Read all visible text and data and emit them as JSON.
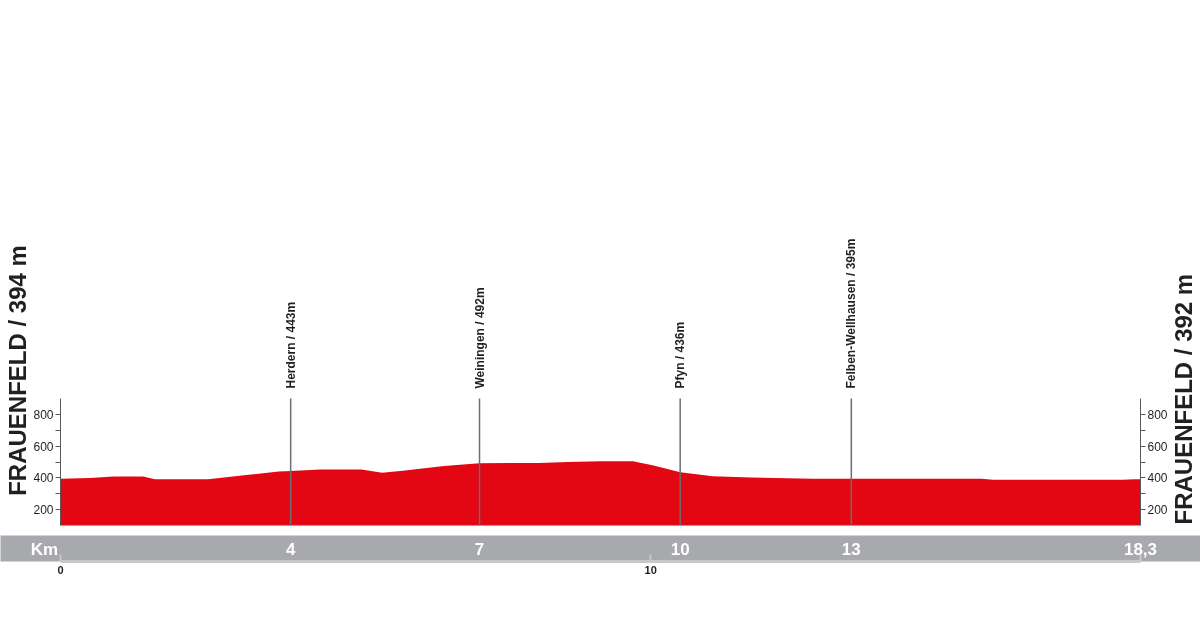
{
  "chart_data": {
    "type": "area",
    "ylabel": "FRAUENFELD / 394 m",
    "y2label": "FRAUENFELD / 392 m",
    "x2label": "Km",
    "x": [
      0,
      0.5,
      0.9,
      1.4,
      1.6,
      2.5,
      3.15,
      3.7,
      3.9,
      4.4,
      5.1,
      5.45,
      5.8,
      6.5,
      7.1,
      8.1,
      8.6,
      9.15,
      9.7,
      10.05,
      10.5,
      11.05,
      11.7,
      12.75,
      13.4,
      15.6,
      15.8,
      18.0,
      18.2,
      18.3
    ],
    "values": [
      394,
      400,
      408,
      408,
      392,
      392,
      418,
      440,
      443,
      452,
      452,
      433,
      445,
      475,
      492,
      494,
      500,
      505,
      505,
      478,
      436,
      410,
      402,
      395,
      395,
      395,
      388,
      388,
      392,
      392
    ],
    "color": "#e30613",
    "xlim": [
      0,
      18.3
    ],
    "xticks": [
      0,
      10,
      {
        "value": 18.3,
        "label": null
      }
    ],
    "x2lim": [
      0,
      18.3
    ],
    "x2ticks": [
      {
        "value": 3.9,
        "label": "4"
      },
      {
        "value": 7.1,
        "label": "7"
      },
      {
        "value": 10.5,
        "label": "10"
      },
      {
        "value": 13.4,
        "label": "13"
      },
      {
        "value": 18.3,
        "label": "18,3"
      }
    ],
    "ylim": [
      100,
      900
    ],
    "yticks": [
      200,
      {
        "value": 300,
        "label": null
      },
      400,
      {
        "value": 500,
        "label": null
      },
      600,
      {
        "value": 700,
        "label": null
      },
      800
    ],
    "y2lim": [
      100,
      900
    ],
    "y2ticks": [
      200,
      {
        "value": 300,
        "label": null
      },
      400,
      {
        "value": 500,
        "label": null
      },
      600,
      {
        "value": 700,
        "label": null
      },
      800
    ],
    "ref_lines": [
      {
        "axis": "x",
        "value": 3.9,
        "label": "Herdern / 443m",
        "color": "#6d6e71"
      },
      {
        "axis": "x",
        "value": 7.1,
        "label": "Weiningen / 492m",
        "color": "#6d6e71"
      },
      {
        "axis": "x",
        "value": 10.5,
        "label": "Pfyn / 436m",
        "color": "#6d6e71"
      },
      {
        "axis": "x",
        "value": 13.4,
        "label": "Felben-Wellhausen / 395m",
        "color": "#6d6e71"
      }
    ]
  }
}
